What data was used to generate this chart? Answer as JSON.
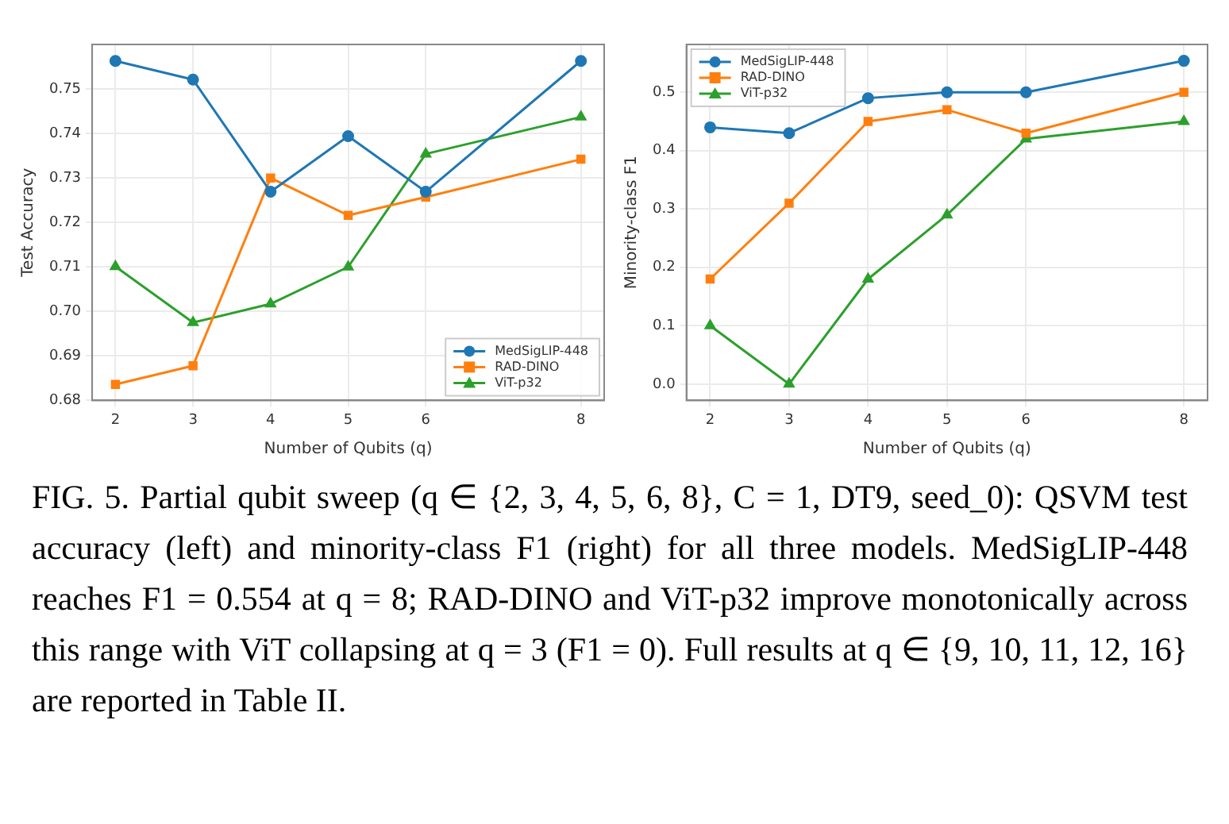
{
  "chart_data": [
    {
      "type": "line",
      "xlabel": "Number of Qubits (q)",
      "ylabel": "Test Accuracy",
      "x": [
        2,
        3,
        4,
        5,
        6,
        8
      ],
      "xlim": [
        1.7,
        8.3
      ],
      "xticks": [
        2,
        3,
        4,
        5,
        6,
        8
      ],
      "ylim": [
        0.68,
        0.76
      ],
      "yticks": [
        {
          "value": 0.68,
          "label": "0.68"
        },
        {
          "value": 0.69,
          "label": "0.69"
        },
        {
          "value": 0.7,
          "label": "0.70"
        },
        {
          "value": 0.71,
          "label": "0.71"
        },
        {
          "value": 0.72,
          "label": "0.72"
        },
        {
          "value": 0.73,
          "label": "0.73"
        },
        {
          "value": 0.74,
          "label": "0.74"
        },
        {
          "value": 0.75,
          "label": "0.75"
        }
      ],
      "grid": true,
      "legend": "bottom right",
      "line_style": "solid",
      "series": [
        {
          "name": "MedSigLIP-448",
          "color": "#1f77b4",
          "marker": "circle",
          "values": [
            0.7563,
            0.7521,
            0.7269,
            0.7394,
            0.7269,
            0.7563
          ]
        },
        {
          "name": "RAD-DINO",
          "color": "#ff7f0e",
          "marker": "square",
          "values": [
            0.6836,
            0.6878,
            0.73,
            0.7216,
            0.7257,
            0.7342
          ]
        },
        {
          "name": "ViT-p32",
          "color": "#2ca02c",
          "marker": "triangle",
          "values": [
            0.7101,
            0.6975,
            0.7017,
            0.71,
            0.7354,
            0.7437
          ]
        }
      ],
      "annotations": [
        "FIG. 5. Partial qubit sweep (q ∈ {2, 3, 4, 5, 6, 8}, C = 1, DT9, seed_0): QSVM test accuracy (left) and minority-class F1 (right) for all three models. MedSigLIP-448 reaches F1 = 0.554 at q = 8; RAD-DINO and ViT-p32 improve monotonically across this range with ViT collapsing at q = 3 (F1 = 0). Full results at q ∈ {9, 10, 11, 12, 16} are reported in Table II."
      ]
    },
    {
      "type": "line",
      "xlabel": "Number of Qubits (q)",
      "ylabel": "Minority-class F1",
      "x": [
        2,
        3,
        4,
        5,
        6,
        8
      ],
      "xlim": [
        1.7,
        8.3
      ],
      "xticks": [
        2,
        3,
        4,
        5,
        6,
        8
      ],
      "ylim": [
        -0.028,
        0.582
      ],
      "yticks": [
        {
          "value": 0,
          "label": "0.0"
        },
        {
          "value": 0.1,
          "label": "0.1"
        },
        {
          "value": 0.2,
          "label": "0.2"
        },
        {
          "value": 0.3,
          "label": "0.3"
        },
        {
          "value": 0.4,
          "label": "0.4"
        },
        {
          "value": 0.5,
          "label": "0.5"
        }
      ],
      "grid": true,
      "legend": "top left",
      "line_style": "solid",
      "series": [
        {
          "name": "MedSigLIP-448",
          "color": "#1f77b4",
          "marker": "circle",
          "values": [
            0.44,
            0.43,
            0.49,
            0.5,
            0.5,
            0.554
          ]
        },
        {
          "name": "RAD-DINO",
          "color": "#ff7f0e",
          "marker": "square",
          "values": [
            0.18,
            0.31,
            0.45,
            0.47,
            0.43,
            0.5
          ]
        },
        {
          "name": "ViT-p32",
          "color": "#2ca02c",
          "marker": "triangle",
          "values": [
            0.1,
            0,
            0.18,
            0.29,
            0.42,
            0.45
          ]
        }
      ]
    }
  ]
}
